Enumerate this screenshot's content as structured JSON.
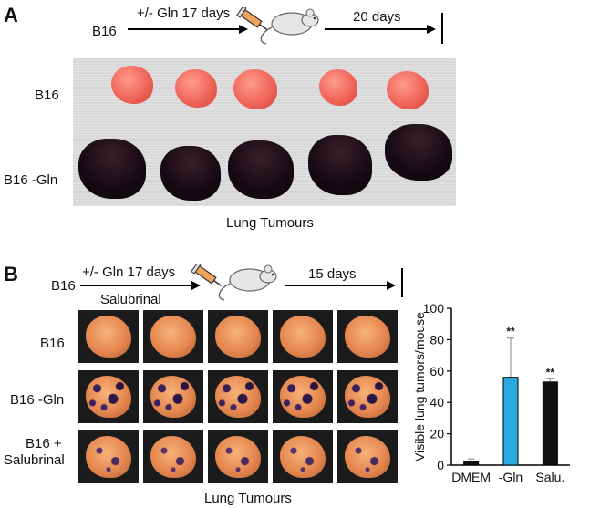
{
  "panel_a": {
    "letter": "A",
    "cell_line": "B16",
    "treatment": "+/- Gln 17 days",
    "followup": "20 days",
    "row_labels": [
      "B16",
      "B16  -Gln"
    ],
    "caption": "Lung Tumours"
  },
  "panel_b": {
    "letter": "B",
    "cell_line": "B16",
    "treatment": "+/- Gln 17 days",
    "treatment2": "Salubrinal",
    "followup": "15 days",
    "row_labels": [
      "B16",
      "B16 -Gln",
      "B16 +",
      "Salubrinal"
    ],
    "caption": "Lung Tumours"
  },
  "chart_data": {
    "type": "bar",
    "categories": [
      "DMEM",
      "-Gln",
      "Salu."
    ],
    "values": [
      2,
      56,
      53
    ],
    "errors": [
      2,
      25,
      2
    ],
    "significance": [
      "",
      "**",
      "**"
    ],
    "colors": [
      "#111111",
      "#2aa8e0",
      "#111111"
    ],
    "ylabel": "Visible lung tumors/mouse",
    "ylim": [
      0,
      100
    ],
    "yticks": [
      0,
      20,
      40,
      60,
      80,
      100
    ]
  }
}
